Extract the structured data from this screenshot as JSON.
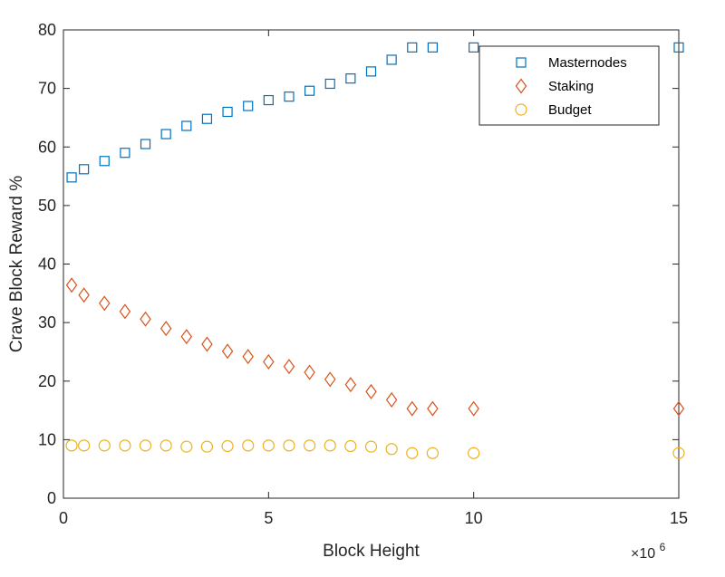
{
  "chart_data": {
    "type": "scatter",
    "title": "",
    "xlabel": "Block Height",
    "ylabel": "Crave Block Reward %",
    "xlim": [
      0,
      15
    ],
    "ylim": [
      0,
      80
    ],
    "x_multiplier": "×10",
    "x_multiplier_exp": "6",
    "xticks": [
      0,
      5,
      10,
      15
    ],
    "yticks": [
      0,
      10,
      20,
      30,
      40,
      50,
      60,
      70,
      80
    ],
    "grid": false,
    "legend_position": "top-right",
    "series": [
      {
        "name": "Masternodes",
        "marker": "square",
        "color": "#0072BD",
        "points": [
          [
            0.2,
            54.8
          ],
          [
            0.5,
            56.2
          ],
          [
            1.0,
            57.6
          ],
          [
            1.5,
            59.0
          ],
          [
            2.0,
            60.5
          ],
          [
            2.5,
            62.2
          ],
          [
            3.0,
            63.6
          ],
          [
            3.5,
            64.8
          ],
          [
            4.0,
            66.0
          ],
          [
            4.5,
            67.0
          ],
          [
            5.0,
            68.0
          ],
          [
            5.5,
            68.6
          ],
          [
            6.0,
            69.6
          ],
          [
            6.5,
            70.8
          ],
          [
            7.0,
            71.7
          ],
          [
            7.5,
            72.9
          ],
          [
            8.0,
            74.9
          ],
          [
            8.5,
            77.0
          ],
          [
            9.0,
            77.0
          ],
          [
            10.0,
            77.0
          ],
          [
            15.0,
            77.0
          ]
        ]
      },
      {
        "name": "Staking",
        "marker": "diamond",
        "color": "#D95319",
        "points": [
          [
            0.2,
            36.4
          ],
          [
            0.5,
            34.7
          ],
          [
            1.0,
            33.3
          ],
          [
            1.5,
            31.9
          ],
          [
            2.0,
            30.6
          ],
          [
            2.5,
            29.0
          ],
          [
            3.0,
            27.6
          ],
          [
            3.5,
            26.3
          ],
          [
            4.0,
            25.1
          ],
          [
            4.5,
            24.2
          ],
          [
            5.0,
            23.3
          ],
          [
            5.5,
            22.5
          ],
          [
            6.0,
            21.5
          ],
          [
            6.5,
            20.3
          ],
          [
            7.0,
            19.4
          ],
          [
            7.5,
            18.2
          ],
          [
            8.0,
            16.8
          ],
          [
            8.5,
            15.3
          ],
          [
            9.0,
            15.3
          ],
          [
            10.0,
            15.3
          ],
          [
            15.0,
            15.3
          ]
        ]
      },
      {
        "name": "Budget",
        "marker": "circle",
        "color": "#EDB120",
        "points": [
          [
            0.2,
            9.0
          ],
          [
            0.5,
            9.0
          ],
          [
            1.0,
            9.0
          ],
          [
            1.5,
            9.0
          ],
          [
            2.0,
            9.0
          ],
          [
            2.5,
            9.0
          ],
          [
            3.0,
            8.8
          ],
          [
            3.5,
            8.8
          ],
          [
            4.0,
            8.9
          ],
          [
            4.5,
            9.0
          ],
          [
            5.0,
            9.0
          ],
          [
            5.5,
            9.0
          ],
          [
            6.0,
            9.0
          ],
          [
            6.5,
            9.0
          ],
          [
            7.0,
            8.9
          ],
          [
            7.5,
            8.8
          ],
          [
            8.0,
            8.4
          ],
          [
            8.5,
            7.7
          ],
          [
            9.0,
            7.7
          ],
          [
            10.0,
            7.7
          ],
          [
            15.0,
            7.7
          ]
        ]
      }
    ]
  }
}
